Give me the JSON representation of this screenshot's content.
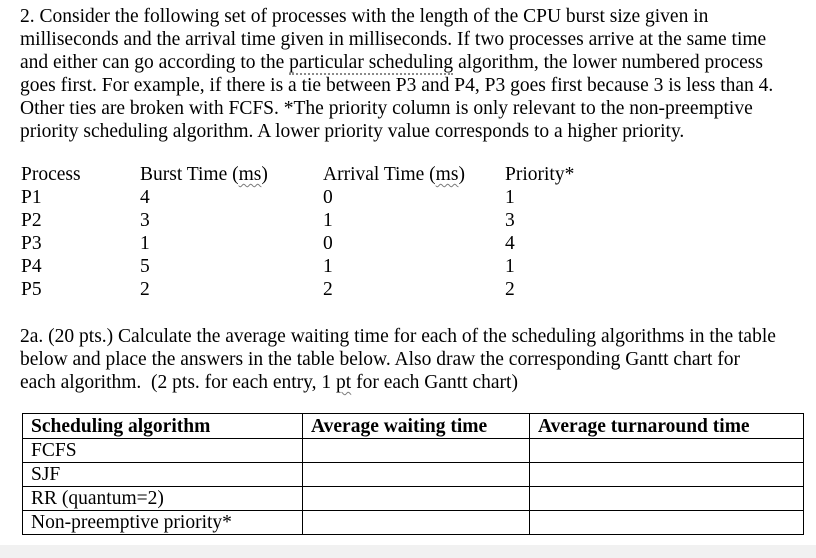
{
  "colors": {
    "page_background": "#ffffff",
    "text": "#000000",
    "table_border": "#000000",
    "proof_mark": "#8a8a8a",
    "page_edge": "#f1f1f1"
  },
  "problem2": {
    "line1": "2. Consider the following set of processes with the length of the CPU burst size given in",
    "line2": "milliseconds and the arrival time given in milliseconds. If two processes arrive at the same time",
    "line3_pre": "and either can go according to the ",
    "line3_marked": "particular scheduling",
    "line3_post": " algorithm, the lower numbered process",
    "line4": "goes first. For example, if there is a tie between P3 and P4, P3 goes first because 3 is less than 4.",
    "line5": "Other ties are broken with FCFS. *The priority column is only relevant to the non-preemptive",
    "line6": "priority scheduling algorithm. A lower priority value corresponds to a higher priority."
  },
  "process_table": {
    "headers": {
      "process": "Process",
      "burst_pre": "Burst Time (",
      "burst_unit": "ms",
      "burst_post": ")",
      "arrival_pre": "Arrival Time (",
      "arrival_unit": "ms",
      "arrival_post": ")",
      "priority": "Priority*"
    },
    "rows": [
      {
        "process": "P1",
        "burst": "4",
        "arrival": "0",
        "priority": "1"
      },
      {
        "process": "P2",
        "burst": "3",
        "arrival": "1",
        "priority": "3"
      },
      {
        "process": "P3",
        "burst": "1",
        "arrival": "0",
        "priority": "4"
      },
      {
        "process": "P4",
        "burst": "5",
        "arrival": "1",
        "priority": "1"
      },
      {
        "process": "P5",
        "burst": "2",
        "arrival": "2",
        "priority": "2"
      }
    ]
  },
  "problem2a": {
    "line1": "2a. (20 pts.) Calculate the average waiting time for each of the scheduling algorithms in the table",
    "line2": "below and place the answers in the table below. Also draw the corresponding Gantt chart for",
    "line3_pre": "each algorithm.  (2 pts. for each entry, 1 ",
    "line3_unit": "pt",
    "line3_post": " for each Gantt chart)"
  },
  "answer_table": {
    "headers": {
      "algorithm": "Scheduling algorithm",
      "waiting": "Average waiting time",
      "turnaround": "Average turnaround time"
    },
    "rows": [
      {
        "algorithm": "FCFS",
        "waiting": "",
        "turnaround": ""
      },
      {
        "algorithm": "SJF",
        "waiting": "",
        "turnaround": ""
      },
      {
        "algorithm": "RR (quantum=2)",
        "waiting": "",
        "turnaround": ""
      },
      {
        "algorithm": "Non-preemptive priority*",
        "waiting": "",
        "turnaround": ""
      }
    ]
  }
}
